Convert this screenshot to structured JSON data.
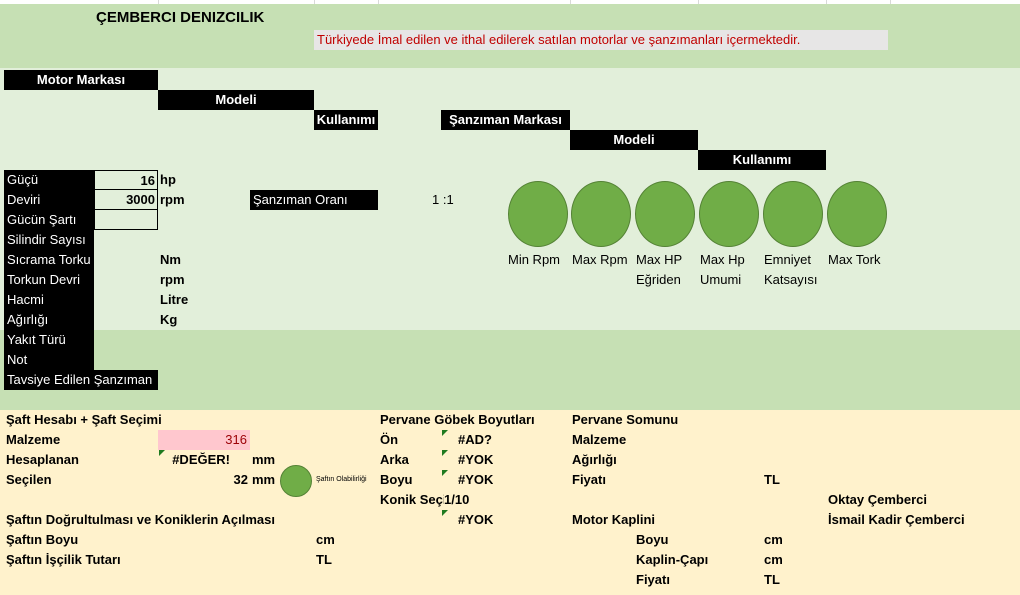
{
  "header": {
    "company": "ÇEMBERCI DENIZCILIK",
    "subtitle": "Türkiyede İmal edilen ve ithal  edilerek satılan motorlar ve şanzımanları içermektedir."
  },
  "motor_headers": {
    "brand": "Motor Markası",
    "model": "Modeli",
    "usage": "Kullanımı"
  },
  "gearbox_headers": {
    "brand": "Şanzıman Markası",
    "model": "Modeli",
    "usage": "Kullanımı"
  },
  "motor_specs": {
    "power_label": "Güçü",
    "power_value": "16",
    "power_unit": "hp",
    "rpm_label": "Deviri",
    "rpm_value": "3000",
    "rpm_unit": "rpm",
    "power_cond_label": "Gücün Şartı",
    "cylinders_label": "Silindir Sayısı",
    "jump_torque_label": "Sıcrama Torku",
    "jump_torque_unit": "Nm",
    "torque_rpm_label": "Torkun Devri",
    "torque_rpm_unit": "rpm",
    "volume_label": "Hacmi",
    "volume_unit": "Litre",
    "weight_label": "Ağırlığı",
    "weight_unit": "Kg",
    "fuel_label": "Yakıt Türü",
    "note_label": "Not",
    "recommended_label": "Tavsiye Edilen Şanzıman"
  },
  "gear_ratio": {
    "label": "Şanzıman Oranı",
    "value": "1 :1"
  },
  "indicators": [
    {
      "line1": "Min Rpm",
      "line2": ""
    },
    {
      "line1": "Max Rpm",
      "line2": ""
    },
    {
      "line1": "Max HP",
      "line2": "Eğriden"
    },
    {
      "line1": "Max Hp",
      "line2": "Umumi"
    },
    {
      "line1": "Emniyet",
      "line2": "Katsayısı"
    },
    {
      "line1": "Max Tork",
      "line2": ""
    }
  ],
  "shaft": {
    "title": "Şaft Hesabı + Şaft Seçimi",
    "material_label": "Malzeme",
    "material_value": "316",
    "calculated_label": "Hesaplanan",
    "calculated_value": "#DEĞER!",
    "calculated_unit": "mm",
    "selected_label": "Seçilen",
    "selected_value": "32",
    "selected_unit": "mm",
    "suitability_label": "Şaftın Olabilirliği",
    "alignment_label": "Şaftın Doğrultulması ve Koniklerin Açılması",
    "length_label": "Şaftın Boyu",
    "length_unit": "cm",
    "labor_label": "Şaftın İşçilik Tutarı",
    "labor_unit": "TL"
  },
  "hub": {
    "title": "Pervane Göbek Boyutları",
    "front_label": "Ön",
    "front_value": "#AD?",
    "rear_label": "Arka",
    "rear_value": "#YOK",
    "length_label": "Boyu",
    "length_value": "#YOK",
    "taper_label": "Konik Seçi",
    "taper_value": "1/10",
    "extra_value": "#YOK"
  },
  "nut": {
    "title": "Pervane Somunu",
    "material_label": "Malzeme",
    "weight_label": "Ağırlığı",
    "price_label": "Fiyatı",
    "price_unit": "TL"
  },
  "coupling": {
    "title": "Motor Kaplini",
    "length_label": "Boyu",
    "length_unit": "cm",
    "diameter_label": "Kaplin-Çapı",
    "diameter_unit": "cm",
    "price_label": "Fiyatı",
    "price_unit": "TL"
  },
  "credits": {
    "name1": "Oktay Çemberci",
    "name2": "İsmail  Kadir Çemberci"
  },
  "colors": {
    "dark_green": "#c6e0b4",
    "light_green": "#e2efda",
    "cream": "#fff2cc",
    "pink": "#ffc7ce",
    "circle_green": "#70ad47",
    "subtitle_red": "#c00000",
    "subtitle_bg": "#e7e6e6"
  }
}
